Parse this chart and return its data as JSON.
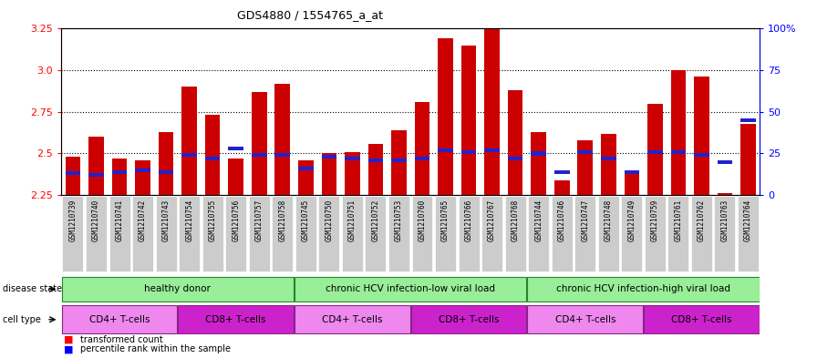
{
  "title": "GDS4880 / 1554765_a_at",
  "samples": [
    "GSM1210739",
    "GSM1210740",
    "GSM1210741",
    "GSM1210742",
    "GSM1210743",
    "GSM1210754",
    "GSM1210755",
    "GSM1210756",
    "GSM1210757",
    "GSM1210758",
    "GSM1210745",
    "GSM1210750",
    "GSM1210751",
    "GSM1210752",
    "GSM1210753",
    "GSM1210760",
    "GSM1210765",
    "GSM1210766",
    "GSM1210767",
    "GSM1210768",
    "GSM1210744",
    "GSM1210746",
    "GSM1210747",
    "GSM1210748",
    "GSM1210749",
    "GSM1210759",
    "GSM1210761",
    "GSM1210762",
    "GSM1210763",
    "GSM1210764"
  ],
  "transformed_count": [
    2.48,
    2.6,
    2.47,
    2.46,
    2.63,
    2.9,
    2.73,
    2.47,
    2.87,
    2.92,
    2.46,
    2.5,
    2.51,
    2.56,
    2.64,
    2.81,
    3.19,
    3.15,
    3.25,
    2.88,
    2.63,
    2.34,
    2.58,
    2.62,
    2.38,
    2.8,
    3.0,
    2.96,
    2.26,
    2.68
  ],
  "percentile_rank": [
    13,
    12,
    14,
    15,
    14,
    24,
    22,
    28,
    24,
    24,
    16,
    23,
    22,
    21,
    21,
    22,
    27,
    26,
    27,
    22,
    25,
    14,
    26,
    22,
    14,
    26,
    26,
    24,
    20,
    45
  ],
  "ylim_left": [
    2.25,
    3.25
  ],
  "ylim_right": [
    0,
    100
  ],
  "yticks_left": [
    2.25,
    2.5,
    2.75,
    3.0,
    3.25
  ],
  "yticks_right": [
    0,
    25,
    50,
    75,
    100
  ],
  "bar_color": "#cc0000",
  "blue_color": "#2222cc",
  "bg_color": "#ffffff",
  "tick_bg_color": "#cccccc",
  "disease_state_color": "#99ee99",
  "cd4_color": "#ee88ee",
  "cd8_color": "#cc22cc",
  "ds_groups": [
    {
      "label": "healthy donor",
      "start": 0,
      "end": 10
    },
    {
      "label": "chronic HCV infection-low viral load",
      "start": 10,
      "end": 20
    },
    {
      "label": "chronic HCV infection-high viral load",
      "start": 20,
      "end": 30
    }
  ],
  "ct_groups": [
    {
      "label": "CD4+ T-cells",
      "start": 0,
      "end": 5,
      "type": "cd4"
    },
    {
      "label": "CD8+ T-cells",
      "start": 5,
      "end": 10,
      "type": "cd8"
    },
    {
      "label": "CD4+ T-cells",
      "start": 10,
      "end": 15,
      "type": "cd4"
    },
    {
      "label": "CD8+ T-cells",
      "start": 15,
      "end": 20,
      "type": "cd8"
    },
    {
      "label": "CD4+ T-cells",
      "start": 20,
      "end": 25,
      "type": "cd4"
    },
    {
      "label": "CD8+ T-cells",
      "start": 25,
      "end": 30,
      "type": "cd8"
    }
  ]
}
